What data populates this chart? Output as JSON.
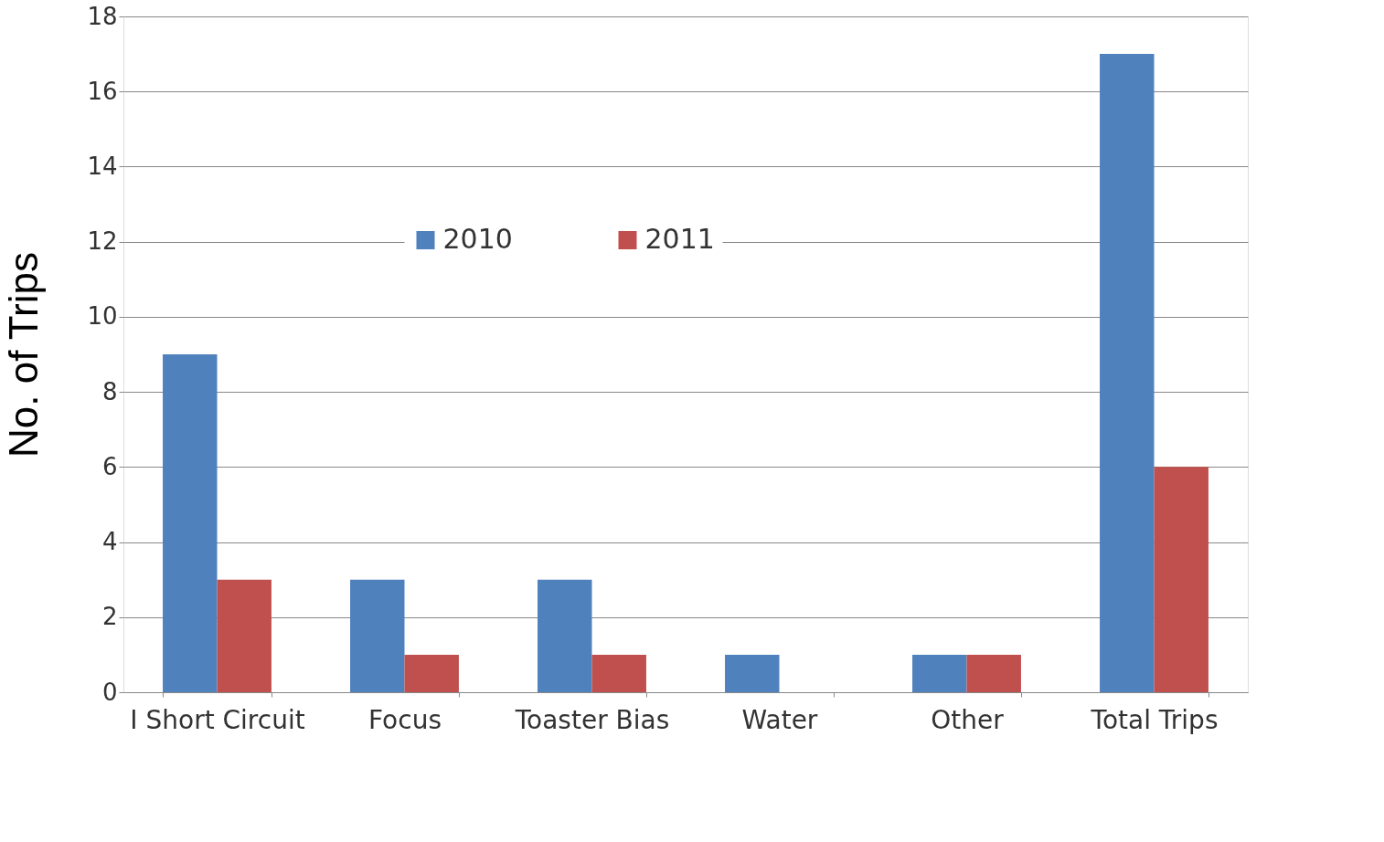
{
  "chart_data": {
    "type": "bar",
    "ylabel": "No. of Trips",
    "categories": [
      "I Short Circuit",
      "Focus",
      "Toaster Bias",
      "Water",
      "Other",
      "Total Trips"
    ],
    "series": [
      {
        "name": "2010",
        "color": "#4f81bd",
        "values": [
          9,
          3,
          3,
          1,
          1,
          17
        ]
      },
      {
        "name": "2011",
        "color": "#c0504d",
        "values": [
          3,
          1,
          1,
          0,
          1,
          6
        ]
      }
    ],
    "ylim": [
      0,
      18
    ],
    "yticks": [
      0,
      2,
      4,
      6,
      8,
      10,
      12,
      14,
      16,
      18
    ],
    "grid": "y",
    "legend": "top"
  }
}
